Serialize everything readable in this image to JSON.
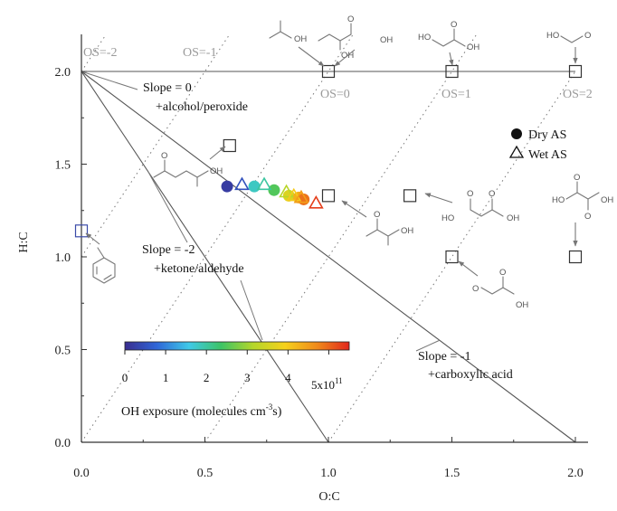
{
  "chart_data": {
    "type": "scatter",
    "title": "",
    "xlabel": "O:C",
    "ylabel": "H:C",
    "xlim": [
      0,
      2
    ],
    "ylim": [
      0,
      2.2
    ],
    "x_ticks": [
      "0.0",
      "0.5",
      "1.0",
      "1.5",
      "2.0"
    ],
    "y_ticks": [
      "0.0",
      "0.5",
      "1.0",
      "1.5",
      "2.0"
    ],
    "grid": false,
    "legend": {
      "placement": "right",
      "entries": [
        {
          "label": "Dry AS",
          "marker": "circle"
        },
        {
          "label": "Wet AS",
          "marker": "triangle"
        }
      ]
    },
    "os_lines": [
      {
        "label": "OS=-2",
        "os": -2
      },
      {
        "label": "OS=-1",
        "os": -1
      },
      {
        "label": "OS=0",
        "os": 0
      },
      {
        "label": "OS=1",
        "os": 1
      },
      {
        "label": "OS=2",
        "os": 2
      }
    ],
    "slope_lines": [
      {
        "label": "Slope = 0",
        "sublabel": "+alcohol/peroxide",
        "slope": 0,
        "x_end": 2.0
      },
      {
        "label": "Slope = -1",
        "sublabel": "+carboxylic acid",
        "slope": -1,
        "x_end": 2.0
      },
      {
        "label": "Slope = -2",
        "sublabel": "+ketone/aldehyde",
        "slope": -2,
        "x_end": 1.0
      }
    ],
    "reference_compounds": [
      {
        "x": 0.0,
        "y": 1.14
      },
      {
        "x": 0.6,
        "y": 1.6
      },
      {
        "x": 1.0,
        "y": 2.0
      },
      {
        "x": 1.5,
        "y": 2.0
      },
      {
        "x": 2.0,
        "y": 2.0
      },
      {
        "x": 1.0,
        "y": 1.33
      },
      {
        "x": 1.33,
        "y": 1.33
      },
      {
        "x": 1.5,
        "y": 1.0
      },
      {
        "x": 2.0,
        "y": 1.0
      }
    ],
    "series": [
      {
        "name": "Dry AS",
        "marker": "circle",
        "points": [
          {
            "x": 0.59,
            "y": 1.38,
            "oh": 0.2
          },
          {
            "x": 0.7,
            "y": 1.38,
            "oh": 1.8
          },
          {
            "x": 0.78,
            "y": 1.36,
            "oh": 2.5
          },
          {
            "x": 0.84,
            "y": 1.33,
            "oh": 3.6
          },
          {
            "x": 0.88,
            "y": 1.32,
            "oh": 4.3
          },
          {
            "x": 0.9,
            "y": 1.31,
            "oh": 4.9
          }
        ]
      },
      {
        "name": "Wet AS",
        "marker": "triangle",
        "points": [
          {
            "x": 0.65,
            "y": 1.39,
            "oh": 0.5
          },
          {
            "x": 0.74,
            "y": 1.39,
            "oh": 2.0
          },
          {
            "x": 0.83,
            "y": 1.35,
            "oh": 3.2
          },
          {
            "x": 0.86,
            "y": 1.33,
            "oh": 4.0
          },
          {
            "x": 0.89,
            "y": 1.32,
            "oh": 4.5
          },
          {
            "x": 0.95,
            "y": 1.29,
            "oh": 5.3
          }
        ]
      }
    ],
    "colorbar": {
      "label": "OH exposure (molecules cm",
      "label_sup": "-3",
      "label_end": "s)",
      "tick_labels": [
        "0",
        "1",
        "2",
        "3",
        "4"
      ],
      "max_label": "5x10",
      "max_exp": "11",
      "range": [
        0,
        5.5
      ],
      "colors": [
        "#3a2d8f",
        "#2f67d8",
        "#3fc9e8",
        "#3cc466",
        "#b4d62a",
        "#f6d11b",
        "#f08a1a",
        "#e1261c"
      ]
    },
    "molecule_labels": {
      "oh": "OH",
      "o": "O"
    }
  }
}
